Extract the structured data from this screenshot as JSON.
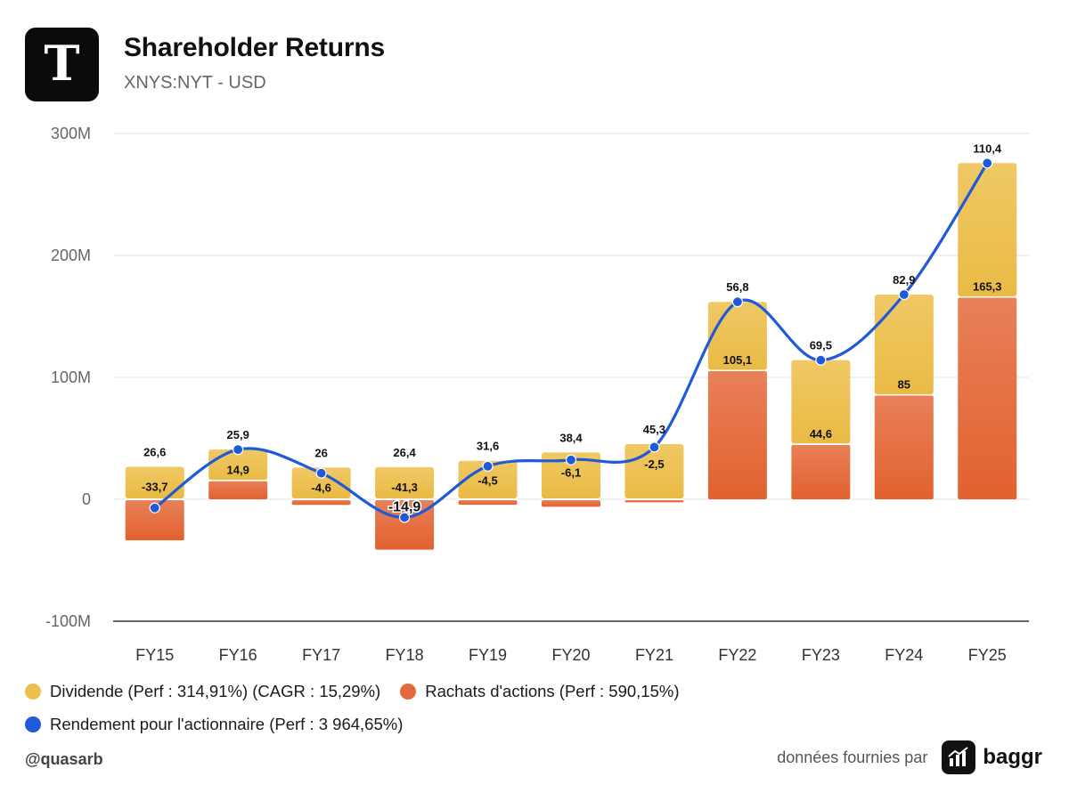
{
  "header": {
    "logo_glyph": "T",
    "title": "Shareholder Returns",
    "subtitle": "XNYS:NYT - USD"
  },
  "chart_data": {
    "type": "bar",
    "stacked": true,
    "categories": [
      "FY15",
      "FY16",
      "FY17",
      "FY18",
      "FY19",
      "FY20",
      "FY21",
      "FY22",
      "FY23",
      "FY24",
      "FY25"
    ],
    "y_ticks": [
      {
        "value": 300,
        "label": "300M"
      },
      {
        "value": 200,
        "label": "200M"
      },
      {
        "value": 100,
        "label": "100M"
      },
      {
        "value": 0,
        "label": "0"
      },
      {
        "value": -100,
        "label": "-100M"
      }
    ],
    "ylim": [
      -100,
      300
    ],
    "grid": true,
    "series": [
      {
        "name": "Dividende (Perf : 314,91%) (CAGR : 15,29%)",
        "kind": "bar",
        "color": "#ECBF50",
        "values": [
          26.6,
          25.9,
          26,
          26.4,
          31.6,
          38.4,
          45.3,
          56.8,
          69.5,
          82.9,
          110.4
        ],
        "labels": [
          "26,6",
          "25,9",
          "26",
          "26,4",
          "31,6",
          "38,4",
          "45,3",
          "56,8",
          "69,5",
          "82,9",
          "110,4"
        ]
      },
      {
        "name": "Rachats d'actions (Perf : 590,15%)",
        "kind": "bar",
        "color": "#E46A3C",
        "values": [
          -33.7,
          14.9,
          -4.6,
          -41.3,
          -4.5,
          -6.1,
          -2.5,
          105.1,
          44.6,
          85,
          165.3
        ],
        "labels": [
          "-33,7",
          "14,9",
          "-4,6",
          "-41,3",
          "-4,5",
          "-6,1",
          "-2,5",
          "105,1",
          "44,6",
          "85",
          "165,3"
        ]
      },
      {
        "name": "Rendement pour l'actionnaire (Perf : 3 964,65%)",
        "kind": "line",
        "color": "#1F5BD8",
        "values": [
          -7.1,
          40.8,
          21.4,
          -14.9,
          27.1,
          32.3,
          42.8,
          161.9,
          114.1,
          167.9,
          275.7
        ],
        "labels": [
          "",
          "",
          "",
          "-14,9",
          "",
          "",
          "",
          "",
          "",
          "",
          ""
        ]
      }
    ]
  },
  "legend": {
    "dividend": {
      "label": "Dividende (Perf : 314,91%) (CAGR : 15,29%)",
      "color": "#ECBF50"
    },
    "buyback": {
      "label": "Rachats d'actions (Perf : 590,15%)",
      "color": "#E46A3C"
    },
    "total": {
      "label": "Rendement pour l'actionnaire (Perf : 3 964,65%)",
      "color": "#1F5BD8"
    }
  },
  "footer": {
    "handle": "@quasarb",
    "credit": "données fournies par",
    "brand": "baggr"
  }
}
